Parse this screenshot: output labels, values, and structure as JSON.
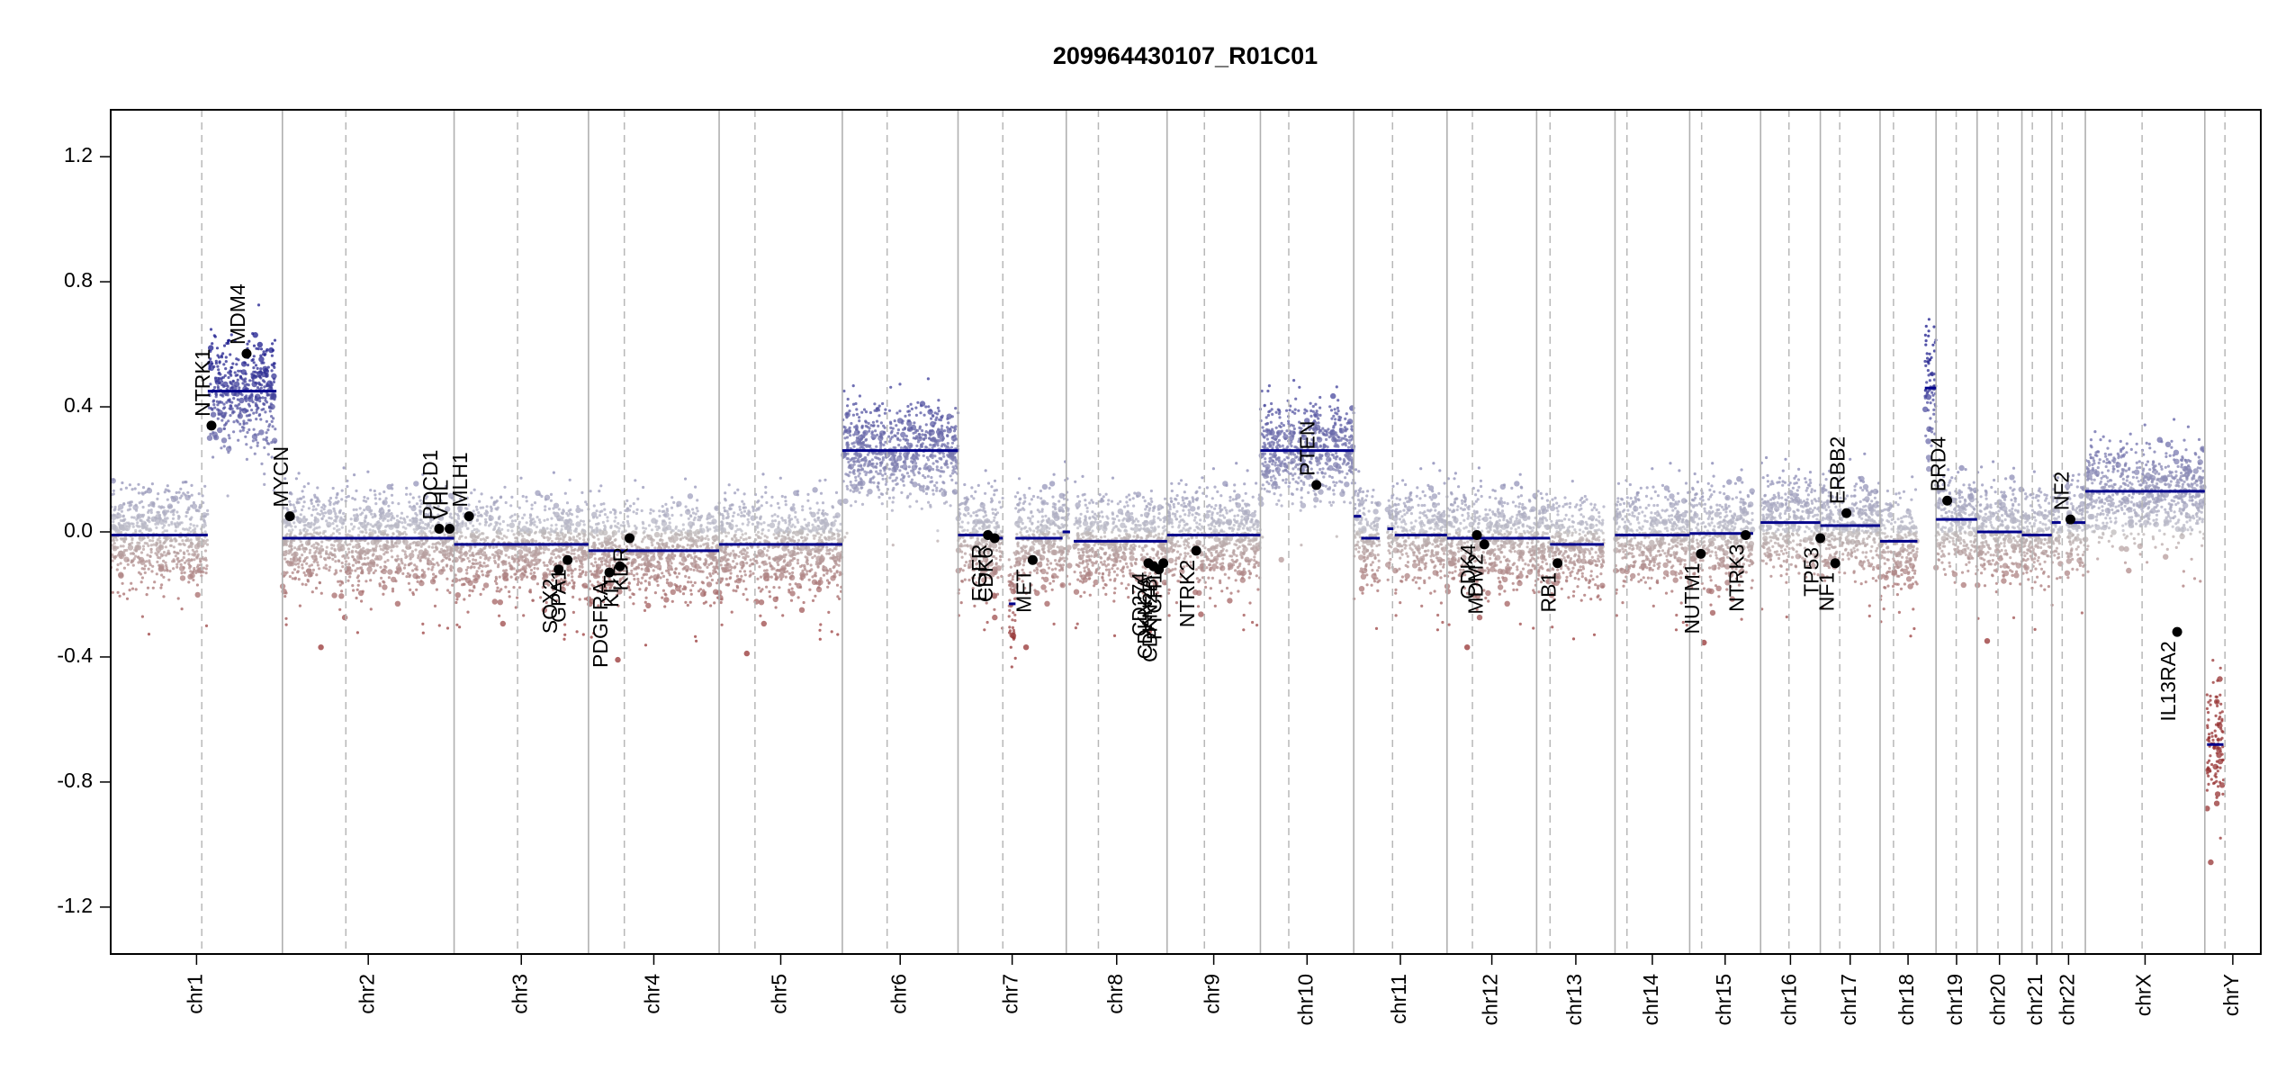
{
  "chart_data": {
    "type": "scatter",
    "title": "209964430107_R01C01",
    "xlabel": "",
    "ylabel": "",
    "ylim": [
      -1.35,
      1.35
    ],
    "y_ticks": [
      1.2,
      0.8,
      0.4,
      0.0,
      -0.4,
      -0.8,
      -1.2
    ],
    "y_tick_labels": [
      "1.2",
      "0.8",
      "0.4",
      "0.0",
      "-0.4",
      "-0.8",
      "-1.2"
    ],
    "xlim": [
      0,
      2880
    ],
    "chromosomes": [
      {
        "name": "chr1",
        "start": 0,
        "end": 230,
        "centromere": 122
      },
      {
        "name": "chr2",
        "start": 230,
        "end": 460,
        "centromere": 315
      },
      {
        "name": "chr3",
        "start": 460,
        "end": 640,
        "centromere": 545
      },
      {
        "name": "chr4",
        "start": 640,
        "end": 815,
        "centromere": 688
      },
      {
        "name": "chr5",
        "start": 815,
        "end": 980,
        "centromere": 863
      },
      {
        "name": "chr6",
        "start": 980,
        "end": 1135,
        "centromere": 1040
      },
      {
        "name": "chr7",
        "start": 1135,
        "end": 1280,
        "centromere": 1195
      },
      {
        "name": "chr8",
        "start": 1280,
        "end": 1415,
        "centromere": 1323
      },
      {
        "name": "chr9",
        "start": 1415,
        "end": 1540,
        "centromere": 1465
      },
      {
        "name": "chr10",
        "start": 1540,
        "end": 1665,
        "centromere": 1578
      },
      {
        "name": "chr11",
        "start": 1665,
        "end": 1790,
        "centromere": 1717
      },
      {
        "name": "chr12",
        "start": 1790,
        "end": 1910,
        "centromere": 1824
      },
      {
        "name": "chr13",
        "start": 1910,
        "end": 2015,
        "centromere": 1928
      },
      {
        "name": "chr14",
        "start": 2015,
        "end": 2115,
        "centromere": 2031
      },
      {
        "name": "chr15",
        "start": 2115,
        "end": 2210,
        "centromere": 2131
      },
      {
        "name": "chr16",
        "start": 2210,
        "end": 2290,
        "centromere": 2248
      },
      {
        "name": "chr17",
        "start": 2290,
        "end": 2370,
        "centromere": 2316
      },
      {
        "name": "chr18",
        "start": 2370,
        "end": 2445,
        "centromere": 2388
      },
      {
        "name": "chr19",
        "start": 2445,
        "end": 2500,
        "centromere": 2472
      },
      {
        "name": "chr20",
        "start": 2500,
        "end": 2560,
        "centromere": 2528
      },
      {
        "name": "chr21",
        "start": 2560,
        "end": 2600,
        "centromere": 2574
      },
      {
        "name": "chr22",
        "start": 2600,
        "end": 2645,
        "centromere": 2614
      },
      {
        "name": "chrX",
        "start": 2645,
        "end": 2805,
        "centromere": 2721
      },
      {
        "name": "chrY",
        "start": 2805,
        "end": 2880,
        "centromere": 2832
      }
    ],
    "segments": [
      {
        "x0": 0,
        "x1": 130,
        "y": -0.01
      },
      {
        "x0": 130,
        "x1": 222,
        "y": 0.45
      },
      {
        "x0": 230,
        "x1": 460,
        "y": -0.02
      },
      {
        "x0": 460,
        "x1": 640,
        "y": -0.04
      },
      {
        "x0": 640,
        "x1": 815,
        "y": -0.06
      },
      {
        "x0": 815,
        "x1": 980,
        "y": -0.04
      },
      {
        "x0": 980,
        "x1": 1135,
        "y": 0.26
      },
      {
        "x0": 1135,
        "x1": 1178,
        "y": -0.01
      },
      {
        "x0": 1178,
        "x1": 1195,
        "y": -0.02
      },
      {
        "x0": 1203,
        "x1": 1212,
        "y": -0.23
      },
      {
        "x0": 1212,
        "x1": 1275,
        "y": -0.02
      },
      {
        "x0": 1275,
        "x1": 1285,
        "y": 0.0
      },
      {
        "x0": 1290,
        "x1": 1415,
        "y": -0.03
      },
      {
        "x0": 1415,
        "x1": 1540,
        "y": -0.01
      },
      {
        "x0": 1540,
        "x1": 1665,
        "y": 0.26
      },
      {
        "x0": 1665,
        "x1": 1675,
        "y": 0.05
      },
      {
        "x0": 1675,
        "x1": 1700,
        "y": -0.02
      },
      {
        "x0": 1710,
        "x1": 1718,
        "y": 0.01
      },
      {
        "x0": 1720,
        "x1": 1790,
        "y": -0.01
      },
      {
        "x0": 1790,
        "x1": 1910,
        "y": -0.02
      },
      {
        "x0": 1910,
        "x1": 1928,
        "y": -0.02
      },
      {
        "x0": 1928,
        "x1": 2000,
        "y": -0.04
      },
      {
        "x0": 2015,
        "x1": 2115,
        "y": -0.01
      },
      {
        "x0": 2115,
        "x1": 2200,
        "y": -0.005
      },
      {
        "x0": 2210,
        "x1": 2290,
        "y": 0.03
      },
      {
        "x0": 2290,
        "x1": 2370,
        "y": 0.02
      },
      {
        "x0": 2370,
        "x1": 2420,
        "y": -0.03
      },
      {
        "x0": 2430,
        "x1": 2445,
        "y": 0.46
      },
      {
        "x0": 2445,
        "x1": 2500,
        "y": 0.04
      },
      {
        "x0": 2500,
        "x1": 2560,
        "y": 0.0
      },
      {
        "x0": 2560,
        "x1": 2600,
        "y": -0.01
      },
      {
        "x0": 2600,
        "x1": 2612,
        "y": 0.03
      },
      {
        "x0": 2620,
        "x1": 2645,
        "y": 0.03
      },
      {
        "x0": 2645,
        "x1": 2805,
        "y": 0.13
      },
      {
        "x0": 2808,
        "x1": 2830,
        "y": -0.68
      }
    ],
    "genes": [
      {
        "name": "NTRK1",
        "x": 135,
        "y": 0.34,
        "label_dir": "up"
      },
      {
        "name": "MDM4",
        "x": 182,
        "y": 0.57,
        "label_dir": "up"
      },
      {
        "name": "MYCN",
        "x": 240,
        "y": 0.05,
        "label_dir": "up"
      },
      {
        "name": "PDCD1",
        "x": 440,
        "y": 0.01,
        "label_dir": "up"
      },
      {
        "name": "VHL",
        "x": 454,
        "y": 0.01,
        "label_dir": "up"
      },
      {
        "name": "MLH1",
        "x": 480,
        "y": 0.05,
        "label_dir": "up"
      },
      {
        "name": "SOX2",
        "x": 600,
        "y": -0.12,
        "label_dir": "down"
      },
      {
        "name": "GPA1",
        "x": 612,
        "y": -0.09,
        "label_dir": "down"
      },
      {
        "name": "PDGFRA",
        "x": 668,
        "y": -0.13,
        "label_dir": "down"
      },
      {
        "name": "KIT",
        "x": 682,
        "y": -0.11,
        "label_dir": "down"
      },
      {
        "name": "KDR",
        "x": 695,
        "y": -0.02,
        "label_dir": "down"
      },
      {
        "name": "EGFR",
        "x": 1175,
        "y": -0.01,
        "label_dir": "down"
      },
      {
        "name": "CDK6",
        "x": 1184,
        "y": -0.02,
        "label_dir": "down"
      },
      {
        "name": "MET",
        "x": 1235,
        "y": -0.09,
        "label_dir": "down"
      },
      {
        "name": "CD274",
        "x": 1390,
        "y": -0.1,
        "label_dir": "down"
      },
      {
        "name": "CDKN2A",
        "x": 1397,
        "y": -0.11,
        "label_dir": "down"
      },
      {
        "name": "CDKN2B",
        "x": 1404,
        "y": -0.12,
        "label_dir": "down"
      },
      {
        "name": "PTCH1",
        "x": 1410,
        "y": -0.1,
        "label_dir": "down"
      },
      {
        "name": "NTRK2",
        "x": 1454,
        "y": -0.06,
        "label_dir": "down"
      },
      {
        "name": "PTEN",
        "x": 1615,
        "y": 0.15,
        "label_dir": "up"
      },
      {
        "name": "CDK4",
        "x": 1830,
        "y": -0.01,
        "label_dir": "down"
      },
      {
        "name": "MDM2",
        "x": 1840,
        "y": -0.04,
        "label_dir": "down"
      },
      {
        "name": "RB1",
        "x": 1938,
        "y": -0.1,
        "label_dir": "down"
      },
      {
        "name": "NUTM1",
        "x": 2130,
        "y": -0.07,
        "label_dir": "down"
      },
      {
        "name": "NTRK3",
        "x": 2190,
        "y": -0.01,
        "label_dir": "down"
      },
      {
        "name": "TP53",
        "x": 2290,
        "y": -0.02,
        "label_dir": "down"
      },
      {
        "name": "NF1",
        "x": 2310,
        "y": -0.1,
        "label_dir": "down"
      },
      {
        "name": "ERBB2",
        "x": 2325,
        "y": 0.06,
        "label_dir": "up"
      },
      {
        "name": "BRD4",
        "x": 2460,
        "y": 0.1,
        "label_dir": "up"
      },
      {
        "name": "NF2",
        "x": 2625,
        "y": 0.04,
        "label_dir": "up"
      },
      {
        "name": "IL13RA2",
        "x": 2768,
        "y": -0.32,
        "label_dir": "down"
      }
    ]
  }
}
